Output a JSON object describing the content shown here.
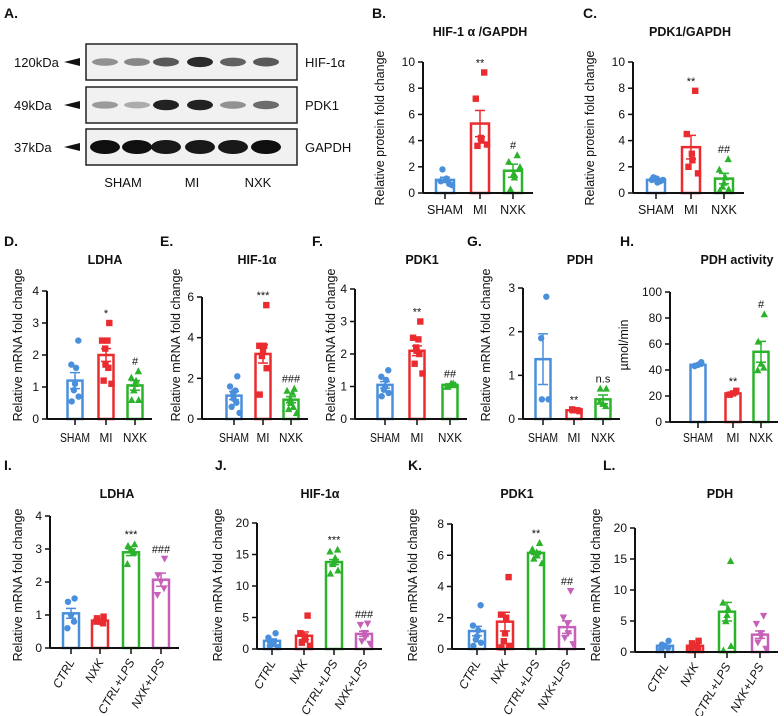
{
  "colors": {
    "blue": "#4a8fdc",
    "red": "#ea2b2f",
    "green": "#2bb32b",
    "magenta": "#c660b8",
    "axis": "#111111"
  },
  "blot": {
    "label": "A.",
    "markers": [
      "120kDa",
      "49kDa",
      "37kDa"
    ],
    "proteins": [
      "HIF-1α",
      "PDK1",
      "GAPDH"
    ],
    "groups": [
      "SHAM",
      "MI",
      "NXK"
    ],
    "band_intensity": [
      [
        0.3,
        0.35,
        0.6,
        0.85,
        0.55,
        0.6
      ],
      [
        0.25,
        0.15,
        0.9,
        0.9,
        0.3,
        0.5
      ],
      [
        1,
        1,
        0.95,
        0.95,
        0.95,
        1
      ]
    ]
  },
  "chart_data": [
    {
      "panel": "B.",
      "type": "bar",
      "title": "HIF-1 α /GAPDH",
      "xlabel": "",
      "ylabel": "Relative protein fold change",
      "ylim": [
        0,
        10
      ],
      "yticks": [
        "0",
        "2",
        "4",
        "6",
        "8",
        "10"
      ],
      "categories": [
        "SHAM",
        "MI",
        "NXK"
      ],
      "groups": [
        {
          "name": "SHAM",
          "color": "blue",
          "marker": "circle",
          "mean": 1.0,
          "sem": 0.2,
          "points": [
            0.7,
            0.9,
            1.0,
            1.1,
            1.8,
            0.6
          ],
          "sig": ""
        },
        {
          "name": "MI",
          "color": "red",
          "marker": "square",
          "mean": 5.3,
          "sem": 1.0,
          "points": [
            9.2,
            7.2,
            4.2,
            4.0,
            3.6,
            3.7
          ],
          "sig": "**"
        },
        {
          "name": "NXK",
          "color": "green",
          "marker": "triangle",
          "mean": 1.7,
          "sem": 0.5,
          "points": [
            2.9,
            2.4,
            1.5,
            1.2,
            0.3,
            2.0
          ],
          "sig": "#"
        }
      ]
    },
    {
      "panel": "C.",
      "type": "bar",
      "title": "PDK1/GAPDH",
      "xlabel": "",
      "ylabel": "Relative protein fold change",
      "ylim": [
        0,
        10
      ],
      "yticks": [
        "0",
        "2",
        "4",
        "6",
        "8",
        "10"
      ],
      "categories": [
        "SHAM",
        "MI",
        "NXK"
      ],
      "groups": [
        {
          "name": "SHAM",
          "color": "blue",
          "marker": "circle",
          "mean": 1.0,
          "sem": 0.1,
          "points": [
            0.9,
            1.0,
            1.1,
            0.8,
            1.2,
            1.0
          ],
          "sig": ""
        },
        {
          "name": "MI",
          "color": "red",
          "marker": "square",
          "mean": 3.5,
          "sem": 0.9,
          "points": [
            7.8,
            4.5,
            3.0,
            2.5,
            2.0,
            1.5
          ],
          "sig": "**"
        },
        {
          "name": "NXK",
          "color": "green",
          "marker": "triangle",
          "mean": 1.1,
          "sem": 0.4,
          "points": [
            2.6,
            1.8,
            1.2,
            0.8,
            0.5,
            0.3,
            0.2
          ],
          "sig": "##"
        }
      ]
    },
    {
      "panel": "D.",
      "type": "bar",
      "title": "LDHA",
      "xlabel": "",
      "ylabel": "Relative mRNA fold change",
      "ylim": [
        0,
        4
      ],
      "yticks": [
        "0",
        "1",
        "2",
        "3",
        "4"
      ],
      "categories": [
        "SHAM",
        "MI",
        "NXK"
      ],
      "groups": [
        {
          "name": "SHAM",
          "color": "blue",
          "marker": "circle",
          "mean": 1.2,
          "sem": 0.25,
          "points": [
            2.45,
            1.7,
            1.6,
            1.1,
            0.9,
            0.7,
            0.55
          ],
          "sig": ""
        },
        {
          "name": "MI",
          "color": "red",
          "marker": "square",
          "mean": 2.0,
          "sem": 0.2,
          "points": [
            3.0,
            2.45,
            2.45,
            2.2,
            1.7,
            1.6,
            1.2,
            1.1
          ],
          "sig": "*"
        },
        {
          "name": "NXK",
          "color": "green",
          "marker": "triangle",
          "mean": 1.05,
          "sem": 0.15,
          "points": [
            1.5,
            1.3,
            1.2,
            1.1,
            0.9,
            0.6,
            0.6
          ],
          "sig": "#"
        }
      ]
    },
    {
      "panel": "E.",
      "type": "bar",
      "title": "HIF-1α",
      "xlabel": "",
      "ylabel": "Relative mRNA fold change",
      "ylim": [
        0,
        6
      ],
      "yticks": [
        "0",
        "2",
        "4",
        "6"
      ],
      "categories": [
        "SHAM",
        "MI",
        "NXK"
      ],
      "groups": [
        {
          "name": "SHAM",
          "color": "blue",
          "marker": "circle",
          "mean": 1.15,
          "sem": 0.2,
          "points": [
            2.1,
            1.6,
            1.4,
            1.3,
            1.0,
            0.8,
            0.6,
            0.3
          ],
          "sig": ""
        },
        {
          "name": "MI",
          "color": "red",
          "marker": "square",
          "mean": 3.2,
          "sem": 0.45,
          "points": [
            5.6,
            3.6,
            3.6,
            3.3,
            3.1,
            2.5,
            1.2
          ],
          "sig": "***"
        },
        {
          "name": "NXK",
          "color": "green",
          "marker": "triangle",
          "mean": 0.95,
          "sem": 0.15,
          "points": [
            1.5,
            1.4,
            1.3,
            1.0,
            0.8,
            0.6,
            0.5,
            0.3
          ],
          "sig": "###"
        }
      ]
    },
    {
      "panel": "F.",
      "type": "bar",
      "title": "PDK1",
      "xlabel": "",
      "ylabel": "Relative mRNA fold change",
      "ylim": [
        0,
        4
      ],
      "yticks": [
        "0",
        "1",
        "2",
        "3",
        "4"
      ],
      "categories": [
        "SHAM",
        "MI",
        "NXK"
      ],
      "groups": [
        {
          "name": "SHAM",
          "color": "blue",
          "marker": "circle",
          "mean": 1.05,
          "sem": 0.1,
          "points": [
            1.5,
            1.3,
            1.2,
            1.0,
            0.9,
            0.8,
            0.7
          ],
          "sig": ""
        },
        {
          "name": "MI",
          "color": "red",
          "marker": "square",
          "mean": 2.1,
          "sem": 0.15,
          "points": [
            3.0,
            2.5,
            2.45,
            2.2,
            2.1,
            2.0,
            1.7,
            1.4
          ],
          "sig": "**"
        },
        {
          "name": "NXK",
          "color": "green",
          "marker": "triangle",
          "mean": 1.05,
          "sem": 0.03,
          "points": [
            1.1,
            1.0,
            1.05,
            1.1,
            1.0,
            1.05
          ],
          "sig": "##"
        }
      ]
    },
    {
      "panel": "G.",
      "type": "bar",
      "title": "PDH",
      "xlabel": "",
      "ylabel": "Relative mRNA fold change",
      "ylim": [
        0,
        3
      ],
      "yticks": [
        "0",
        "1",
        "2",
        "3"
      ],
      "categories": [
        "SHAM",
        "MI",
        "NXK"
      ],
      "groups": [
        {
          "name": "SHAM",
          "color": "blue",
          "marker": "circle",
          "mean": 1.37,
          "sem": 0.58,
          "points": [
            2.8,
            1.85,
            0.45,
            0.45
          ],
          "sig": ""
        },
        {
          "name": "MI",
          "color": "red",
          "marker": "square",
          "mean": 0.2,
          "sem": 0.02,
          "points": [
            0.2,
            0.22,
            0.2,
            0.18
          ],
          "sig": "**"
        },
        {
          "name": "NXK",
          "color": "green",
          "marker": "triangle",
          "mean": 0.45,
          "sem": 0.1,
          "points": [
            0.7,
            0.7,
            0.35,
            0.3,
            0.4
          ],
          "sig": "n.s"
        }
      ]
    },
    {
      "panel": "H.",
      "type": "bar",
      "title": "PDH activity",
      "xlabel": "",
      "ylabel": "µmol/min",
      "ylim": [
        0,
        100
      ],
      "yticks": [
        "0",
        "20",
        "40",
        "60",
        "80",
        "100"
      ],
      "categories": [
        "SHAM",
        "MI",
        "NXK"
      ],
      "groups": [
        {
          "name": "SHAM",
          "color": "blue",
          "marker": "circle",
          "mean": 44,
          "sem": 1,
          "points": [
            46,
            44,
            43
          ],
          "sig": ""
        },
        {
          "name": "MI",
          "color": "red",
          "marker": "square",
          "mean": 22,
          "sem": 1,
          "points": [
            24,
            22,
            21
          ],
          "sig": "**"
        },
        {
          "name": "NXK",
          "color": "green",
          "marker": "triangle",
          "mean": 54,
          "sem": 8,
          "points": [
            83,
            62,
            45,
            42,
            40
          ],
          "sig": "#"
        }
      ]
    },
    {
      "panel": "I.",
      "type": "bar",
      "title": "LDHA",
      "xlabel": "",
      "ylabel": "Relative mRNA fold change",
      "ylim": [
        0,
        4
      ],
      "yticks": [
        "0",
        "1",
        "2",
        "3",
        "4"
      ],
      "categories": [
        "CTRL",
        "NXK",
        "CTRL+LPS",
        "NXK+LPS"
      ],
      "groups": [
        {
          "name": "CTRL",
          "color": "blue",
          "marker": "circle",
          "mean": 1.05,
          "sem": 0.15,
          "points": [
            1.5,
            1.4,
            1.0,
            0.8,
            0.6
          ],
          "sig": ""
        },
        {
          "name": "NXK",
          "color": "red",
          "marker": "square",
          "mean": 0.83,
          "sem": 0.05,
          "points": [
            0.95,
            0.9,
            0.8,
            0.75,
            0.8
          ],
          "sig": ""
        },
        {
          "name": "CTRL+LPS",
          "color": "green",
          "marker": "triangle",
          "mean": 2.9,
          "sem": 0.1,
          "points": [
            3.15,
            3.1,
            3.0,
            2.9,
            2.55
          ],
          "sig": "***"
        },
        {
          "name": "NXK+LPS",
          "color": "magenta",
          "marker": "invtriangle",
          "mean": 2.07,
          "sem": 0.2,
          "points": [
            2.7,
            2.2,
            2.0,
            1.8,
            1.6
          ],
          "sig": "###"
        }
      ]
    },
    {
      "panel": "J.",
      "type": "bar",
      "title": "HIF-1α",
      "xlabel": "",
      "ylabel": "Relative mRNA fold change",
      "ylim": [
        0,
        20
      ],
      "yticks": [
        "0",
        "5",
        "10",
        "15",
        "20"
      ],
      "categories": [
        "CTRL",
        "NXK",
        "CTRL+LPS",
        "NXK+LPS"
      ],
      "groups": [
        {
          "name": "CTRL",
          "color": "blue",
          "marker": "circle",
          "mean": 1.3,
          "sem": 0.3,
          "points": [
            2.5,
            1.8,
            1.2,
            0.8,
            0.5,
            0.3
          ],
          "sig": ""
        },
        {
          "name": "NXK",
          "color": "red",
          "marker": "square",
          "mean": 2.1,
          "sem": 0.6,
          "points": [
            5.3,
            2.5,
            2.0,
            1.5,
            1.0,
            0.5
          ],
          "sig": ""
        },
        {
          "name": "CTRL+LPS",
          "color": "green",
          "marker": "triangle",
          "mean": 13.8,
          "sem": 0.4,
          "points": [
            15.8,
            15.5,
            14.5,
            13.8,
            13.5,
            12.5,
            12.0
          ],
          "sig": "***"
        },
        {
          "name": "NXK+LPS",
          "color": "magenta",
          "marker": "invtriangle",
          "mean": 2.4,
          "sem": 0.4,
          "points": [
            4.0,
            3.8,
            2.5,
            1.8,
            1.2,
            0.8
          ],
          "sig": "###"
        }
      ]
    },
    {
      "panel": "K.",
      "type": "bar",
      "title": "PDK1",
      "xlabel": "",
      "ylabel": "Relative mRNA fold change",
      "ylim": [
        0,
        8
      ],
      "yticks": [
        "0",
        "2",
        "4",
        "6",
        "8"
      ],
      "categories": [
        "CTRL",
        "NXK",
        "CTRL+LPS",
        "NXK+LPS"
      ],
      "groups": [
        {
          "name": "CTRL",
          "color": "blue",
          "marker": "circle",
          "mean": 1.15,
          "sem": 0.3,
          "points": [
            2.8,
            1.5,
            1.2,
            0.8,
            0.6,
            0.4,
            0.2
          ],
          "sig": ""
        },
        {
          "name": "NXK",
          "color": "red",
          "marker": "square",
          "mean": 1.75,
          "sem": 0.6,
          "points": [
            4.6,
            2.2,
            2.0,
            1.0,
            0.5,
            0.2,
            0.1
          ],
          "sig": ""
        },
        {
          "name": "CTRL+LPS",
          "color": "green",
          "marker": "triangle",
          "mean": 6.15,
          "sem": 0.1,
          "points": [
            6.8,
            6.4,
            6.2,
            6.0,
            5.8,
            5.5
          ],
          "sig": "**"
        },
        {
          "name": "NXK+LPS",
          "color": "magenta",
          "marker": "invtriangle",
          "mean": 1.4,
          "sem": 0.4,
          "points": [
            3.7,
            2.0,
            1.6,
            1.0,
            0.7,
            0.3
          ],
          "sig": "##"
        }
      ]
    },
    {
      "panel": "L.",
      "type": "bar",
      "title": "PDH",
      "xlabel": "",
      "ylabel": "Relative mRNA fold change",
      "ylim": [
        0,
        20
      ],
      "yticks": [
        "0",
        "5",
        "10",
        "15",
        "20"
      ],
      "categories": [
        "CTRL",
        "NXK",
        "CTRL+LPS",
        "NXK+LPS"
      ],
      "groups": [
        {
          "name": "CTRL",
          "color": "blue",
          "marker": "circle",
          "mean": 1.0,
          "sem": 0.1,
          "points": [
            1.8,
            1.2,
            1.0,
            0.7,
            0.5
          ],
          "sig": ""
        },
        {
          "name": "NXK",
          "color": "red",
          "marker": "square",
          "mean": 1.0,
          "sem": 0.2,
          "points": [
            1.8,
            1.4,
            1.0,
            0.5,
            0.3
          ],
          "sig": ""
        },
        {
          "name": "CTRL+LPS",
          "color": "green",
          "marker": "triangle",
          "mean": 6.5,
          "sem": 1.5,
          "points": [
            14.7,
            8.0,
            7.0,
            6.0,
            5.0,
            1.0,
            0.3
          ],
          "sig": ""
        },
        {
          "name": "NXK+LPS",
          "color": "magenta",
          "marker": "invtriangle",
          "mean": 2.8,
          "sem": 0.6,
          "points": [
            5.8,
            4.5,
            3.0,
            2.5,
            1.5,
            0.5
          ],
          "sig": ""
        }
      ]
    }
  ]
}
